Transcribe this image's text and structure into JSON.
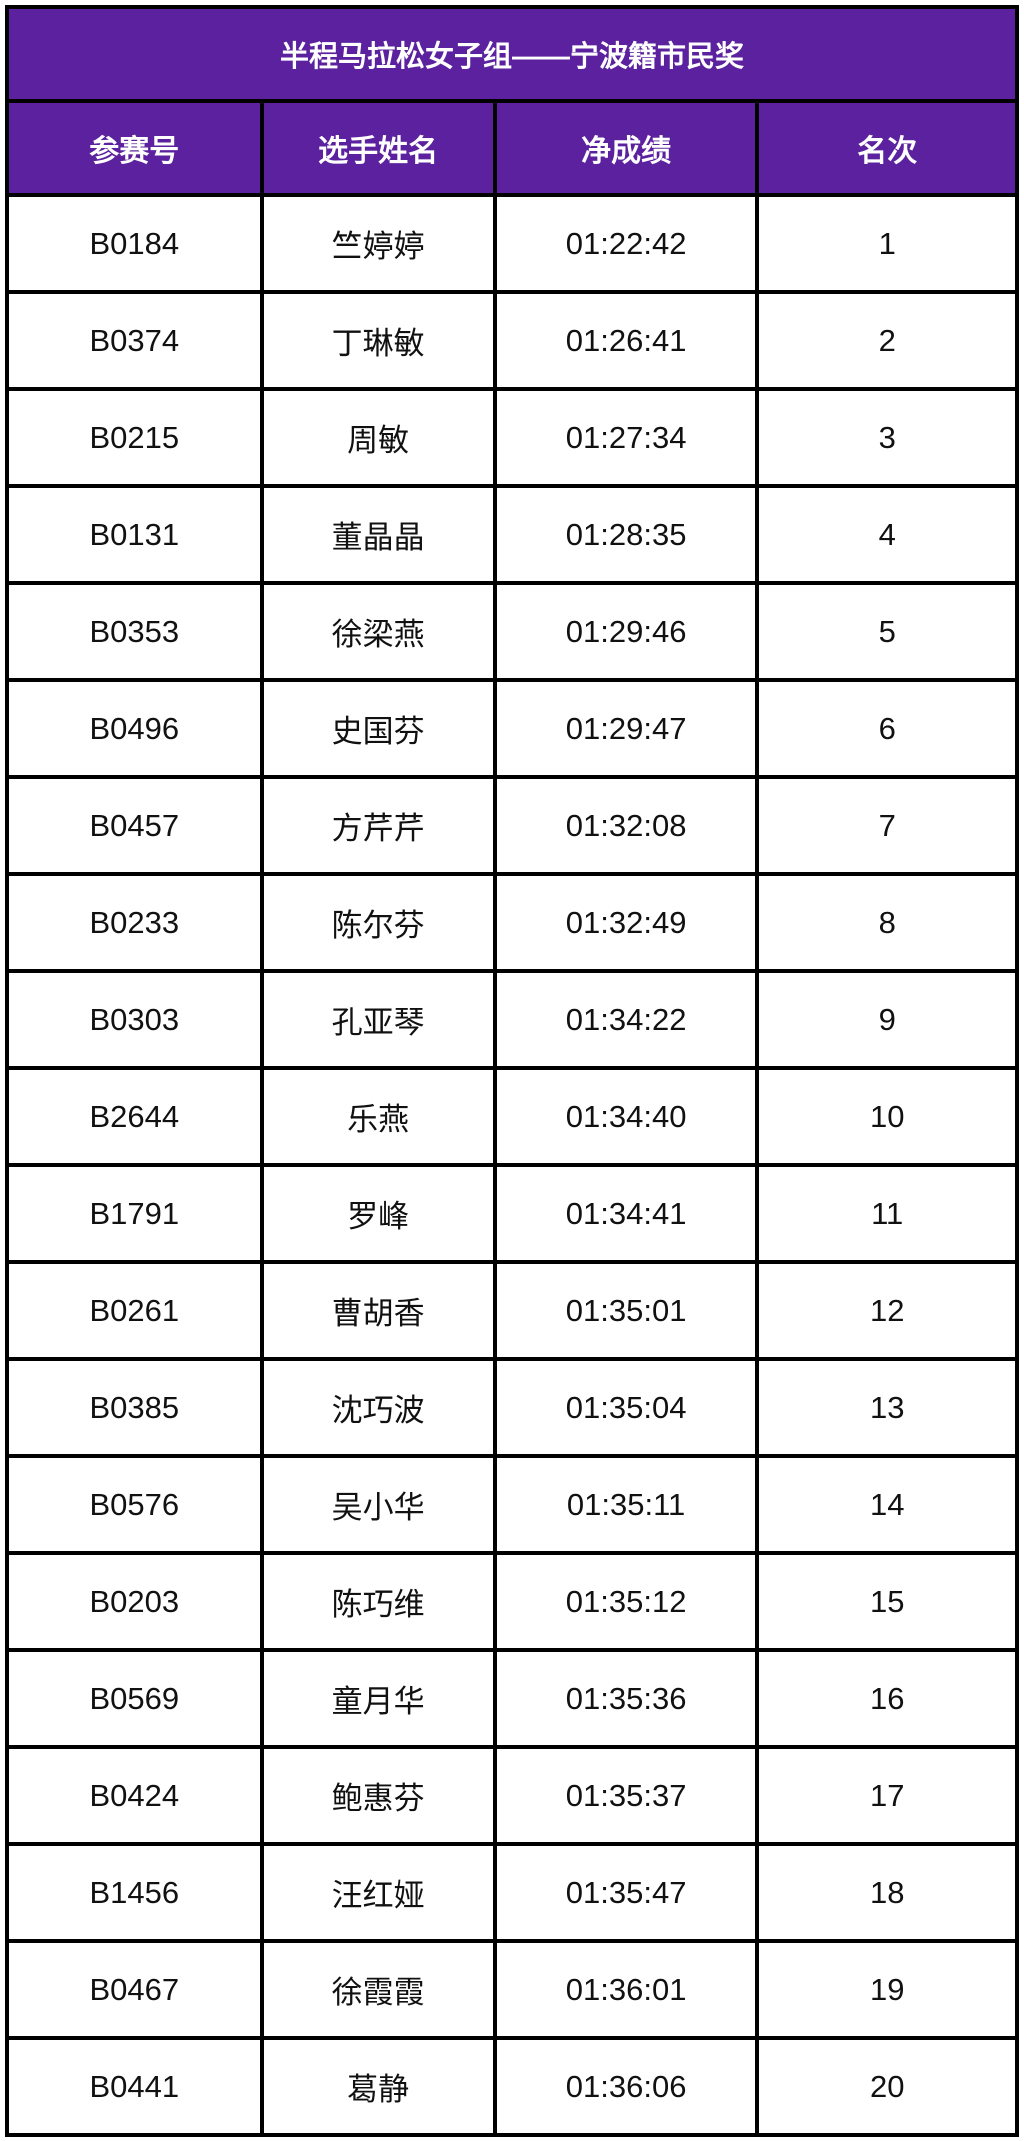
{
  "colors": {
    "header_purple": "#5b219e",
    "grid_border": "#000000",
    "header_text": "#ffffff",
    "body_text": "#111111",
    "page_background": "#ffffff"
  },
  "chart_data": {
    "type": "table",
    "title": "半程马拉松女子组——宁波籍市民奖",
    "columns": [
      "参赛号",
      "选手姓名",
      "净成绩",
      "名次"
    ],
    "rows": [
      {
        "bib": "B0184",
        "name": "竺婷婷",
        "time": "01:22:42",
        "rank": "1"
      },
      {
        "bib": "B0374",
        "name": "丁琳敏",
        "time": "01:26:41",
        "rank": "2"
      },
      {
        "bib": "B0215",
        "name": "周敏",
        "time": "01:27:34",
        "rank": "3"
      },
      {
        "bib": "B0131",
        "name": "董晶晶",
        "time": "01:28:35",
        "rank": "4"
      },
      {
        "bib": "B0353",
        "name": "徐梁燕",
        "time": "01:29:46",
        "rank": "5"
      },
      {
        "bib": "B0496",
        "name": "史国芬",
        "time": "01:29:47",
        "rank": "6"
      },
      {
        "bib": "B0457",
        "name": "方芹芹",
        "time": "01:32:08",
        "rank": "7"
      },
      {
        "bib": "B0233",
        "name": "陈尔芬",
        "time": "01:32:49",
        "rank": "8"
      },
      {
        "bib": "B0303",
        "name": "孔亚琴",
        "time": "01:34:22",
        "rank": "9"
      },
      {
        "bib": "B2644",
        "name": "乐燕",
        "time": "01:34:40",
        "rank": "10"
      },
      {
        "bib": "B1791",
        "name": "罗峰",
        "time": "01:34:41",
        "rank": "11"
      },
      {
        "bib": "B0261",
        "name": "曹胡香",
        "time": "01:35:01",
        "rank": "12"
      },
      {
        "bib": "B0385",
        "name": "沈巧波",
        "time": "01:35:04",
        "rank": "13"
      },
      {
        "bib": "B0576",
        "name": "吴小华",
        "time": "01:35:11",
        "rank": "14"
      },
      {
        "bib": "B0203",
        "name": "陈巧维",
        "time": "01:35:12",
        "rank": "15"
      },
      {
        "bib": "B0569",
        "name": "童月华",
        "time": "01:35:36",
        "rank": "16"
      },
      {
        "bib": "B0424",
        "name": "鲍惠芬",
        "time": "01:35:37",
        "rank": "17"
      },
      {
        "bib": "B1456",
        "name": "汪红娅",
        "time": "01:35:47",
        "rank": "18"
      },
      {
        "bib": "B0467",
        "name": "徐霞霞",
        "time": "01:36:01",
        "rank": "19"
      },
      {
        "bib": "B0441",
        "name": "葛静",
        "time": "01:36:06",
        "rank": "20"
      }
    ]
  }
}
